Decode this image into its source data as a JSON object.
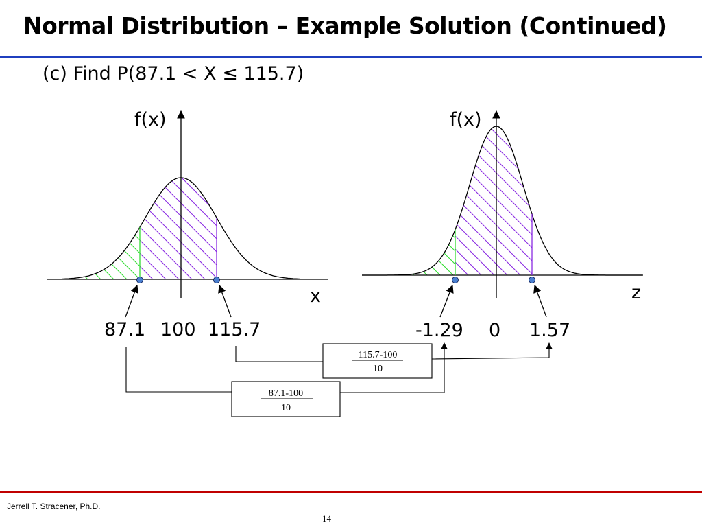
{
  "header": {
    "title": "Normal Distribution – Example Solution (Continued)",
    "subtitle": "(c) Find P(87.1 < X ≤  115.7)"
  },
  "left_plot": {
    "y_label": "f(x)",
    "x_label": "x",
    "values": [
      "87.1",
      "100",
      "115.7"
    ]
  },
  "right_plot": {
    "y_label": "f(x)",
    "x_label": "z",
    "values": [
      "-1.29",
      "0",
      "1.57"
    ]
  },
  "conversion_boxes": {
    "upper": {
      "numerator": "115.7-100",
      "denominator": "10"
    },
    "lower": {
      "numerator": "87.1-100",
      "denominator": "10"
    }
  },
  "colors": {
    "title_rule": "#1f3fbf",
    "footer_rule": "#c00000",
    "hatch_purple": "#8a2be2",
    "hatch_green": "#33dd33",
    "point_fill": "#4a7fd0"
  },
  "footer": {
    "author": "Jerrell T. Stracener, Ph.D.",
    "page": "14"
  }
}
